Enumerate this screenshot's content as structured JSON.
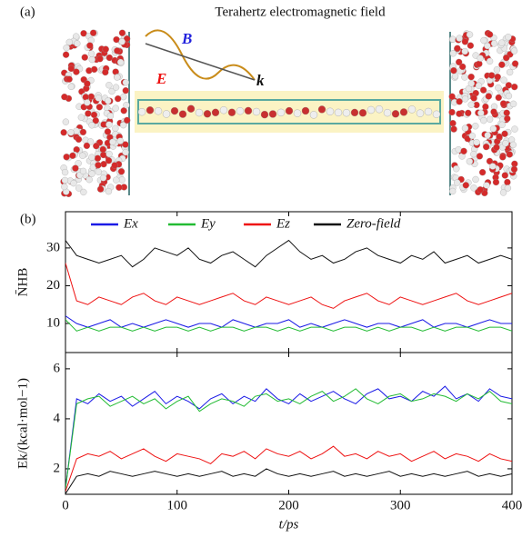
{
  "panel_a": {
    "label": "(a)",
    "title": "Terahertz electromagnetic field",
    "b_label": "B",
    "e_label": "E",
    "k_label": "k"
  },
  "chart_data": [
    {
      "type": "line",
      "panel_label": "(b)",
      "ylabel": "N̄HB",
      "legend": "upper center",
      "x": [
        0,
        10,
        20,
        30,
        40,
        50,
        60,
        70,
        80,
        90,
        100,
        110,
        120,
        130,
        140,
        150,
        160,
        170,
        180,
        190,
        200,
        210,
        220,
        230,
        240,
        250,
        260,
        270,
        280,
        290,
        300,
        310,
        320,
        330,
        340,
        350,
        360,
        370,
        380,
        390,
        400
      ],
      "xlim": [
        0,
        400
      ],
      "xticks": [
        0,
        100,
        200,
        300,
        400
      ],
      "ylim": [
        2.3,
        39.6
      ],
      "yticks": [
        10,
        20,
        30
      ],
      "series": [
        {
          "name": "Ex",
          "color": "#1a1ae6",
          "values": [
            12,
            10,
            9,
            10,
            11,
            9,
            10,
            9,
            10,
            11,
            10,
            9,
            10,
            10,
            9,
            11,
            10,
            9,
            10,
            10,
            11,
            9,
            10,
            9,
            10,
            11,
            10,
            9,
            10,
            10,
            9,
            10,
            11,
            9,
            10,
            10,
            9,
            10,
            11,
            10,
            10
          ]
        },
        {
          "name": "Ey",
          "color": "#22bb33",
          "values": [
            11,
            8,
            9,
            8,
            9,
            9,
            8,
            9,
            8,
            9,
            9,
            8,
            9,
            8,
            9,
            9,
            8,
            9,
            9,
            8,
            9,
            8,
            9,
            9,
            8,
            9,
            9,
            8,
            9,
            8,
            9,
            9,
            8,
            9,
            8,
            9,
            9,
            8,
            9,
            9,
            8
          ]
        },
        {
          "name": "Ez",
          "color": "#ee1111",
          "values": [
            26,
            16,
            15,
            17,
            16,
            15,
            17,
            18,
            16,
            15,
            17,
            16,
            15,
            16,
            17,
            18,
            16,
            15,
            17,
            16,
            15,
            16,
            17,
            15,
            14,
            16,
            17,
            18,
            16,
            15,
            17,
            16,
            15,
            16,
            17,
            18,
            16,
            15,
            16,
            17,
            18
          ]
        },
        {
          "name": "Zero-field",
          "color": "#111111",
          "values": [
            32,
            28,
            27,
            26,
            27,
            28,
            25,
            27,
            30,
            29,
            28,
            30,
            27,
            26,
            28,
            29,
            27,
            25,
            28,
            30,
            32,
            29,
            27,
            28,
            26,
            27,
            29,
            30,
            28,
            27,
            26,
            28,
            27,
            29,
            26,
            27,
            28,
            26,
            27,
            28,
            27
          ]
        }
      ]
    },
    {
      "type": "line",
      "ylabel": "Ek/(kcal·mol−1)",
      "xlabel": "t/ps",
      "x": [
        0,
        10,
        20,
        30,
        40,
        50,
        60,
        70,
        80,
        90,
        100,
        110,
        120,
        130,
        140,
        150,
        160,
        170,
        180,
        190,
        200,
        210,
        220,
        230,
        240,
        250,
        260,
        270,
        280,
        290,
        300,
        310,
        320,
        330,
        340,
        350,
        360,
        370,
        380,
        390,
        400
      ],
      "xlim": [
        0,
        400
      ],
      "xticks": [
        0,
        100,
        200,
        300,
        400
      ],
      "ylim": [
        0.98,
        6.65
      ],
      "yticks": [
        2,
        4,
        6
      ],
      "series": [
        {
          "name": "Ex",
          "color": "#1a1ae6",
          "values": [
            1.2,
            4.8,
            4.6,
            5.0,
            4.7,
            4.9,
            4.5,
            4.8,
            5.1,
            4.6,
            4.9,
            4.7,
            4.4,
            4.8,
            5.0,
            4.6,
            4.9,
            4.7,
            5.2,
            4.8,
            4.6,
            5.0,
            4.7,
            4.9,
            5.1,
            4.8,
            4.6,
            5.0,
            5.2,
            4.8,
            4.9,
            4.7,
            5.1,
            4.9,
            5.3,
            4.8,
            5.0,
            4.7,
            5.2,
            4.9,
            4.8
          ]
        },
        {
          "name": "Ey",
          "color": "#22bb33",
          "values": [
            1.2,
            4.6,
            4.8,
            4.9,
            4.5,
            4.7,
            4.9,
            4.6,
            4.8,
            4.4,
            4.7,
            4.9,
            4.3,
            4.6,
            4.8,
            4.7,
            4.5,
            4.9,
            5.0,
            4.7,
            4.8,
            4.6,
            4.9,
            5.1,
            4.7,
            4.9,
            5.2,
            4.8,
            4.6,
            4.9,
            5.0,
            4.7,
            4.8,
            5.0,
            4.9,
            4.7,
            5.0,
            4.8,
            5.1,
            4.7,
            4.6
          ]
        },
        {
          "name": "Ez",
          "color": "#ee1111",
          "values": [
            1.1,
            2.4,
            2.6,
            2.5,
            2.7,
            2.4,
            2.6,
            2.8,
            2.5,
            2.3,
            2.6,
            2.5,
            2.4,
            2.2,
            2.6,
            2.5,
            2.7,
            2.4,
            2.8,
            2.6,
            2.5,
            2.7,
            2.4,
            2.6,
            2.9,
            2.5,
            2.6,
            2.4,
            2.7,
            2.5,
            2.6,
            2.3,
            2.5,
            2.7,
            2.4,
            2.6,
            2.5,
            2.3,
            2.6,
            2.4,
            2.3
          ]
        },
        {
          "name": "Zero-field",
          "color": "#111111",
          "values": [
            1.0,
            1.7,
            1.8,
            1.7,
            1.9,
            1.8,
            1.7,
            1.8,
            1.9,
            1.8,
            1.7,
            1.8,
            1.7,
            1.8,
            1.9,
            1.7,
            1.8,
            1.7,
            2.0,
            1.8,
            1.7,
            1.8,
            1.7,
            1.8,
            1.9,
            1.7,
            1.8,
            1.7,
            1.8,
            1.9,
            1.7,
            1.8,
            1.7,
            1.8,
            1.7,
            1.8,
            1.9,
            1.7,
            1.8,
            1.7,
            1.8
          ]
        }
      ]
    }
  ]
}
